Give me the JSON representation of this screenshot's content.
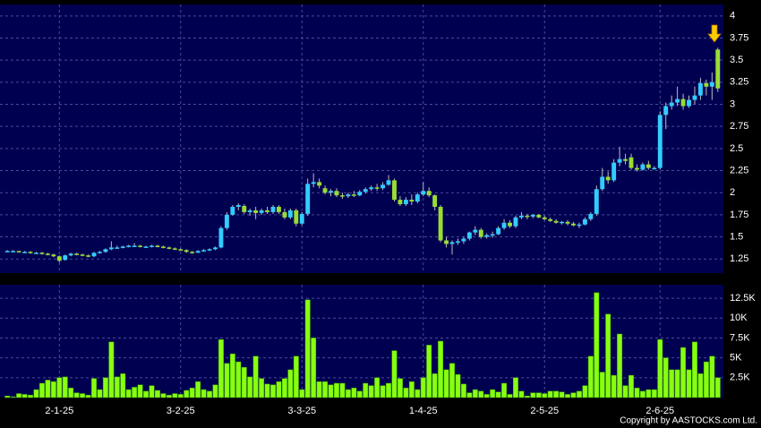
{
  "chart_data": {
    "type": "candlestick",
    "categories": [
      null,
      null,
      null,
      null,
      null,
      null,
      null,
      null,
      null,
      "2-1-25",
      null,
      null,
      null,
      null,
      null,
      null,
      null,
      null,
      null,
      null,
      null,
      null,
      null,
      null,
      null,
      null,
      null,
      null,
      null,
      null,
      "3-2-25",
      null,
      null,
      null,
      null,
      null,
      null,
      null,
      null,
      null,
      null,
      null,
      null,
      null,
      null,
      null,
      null,
      null,
      null,
      null,
      null,
      "3-3-25",
      null,
      null,
      null,
      null,
      null,
      null,
      null,
      null,
      null,
      null,
      null,
      null,
      null,
      null,
      null,
      null,
      null,
      null,
      null,
      null,
      "1-4-25",
      null,
      null,
      null,
      null,
      null,
      null,
      null,
      null,
      null,
      null,
      null,
      null,
      null,
      null,
      null,
      null,
      null,
      null,
      null,
      null,
      "2-5-25",
      null,
      null,
      null,
      null,
      null,
      null,
      null,
      null,
      null,
      null,
      null,
      null,
      null,
      null,
      null,
      null,
      null,
      null,
      null,
      "2-6-25",
      null,
      null,
      null,
      null,
      null,
      null,
      null,
      null,
      null,
      null
    ],
    "ohlc": [
      [
        1.34,
        1.35,
        1.33,
        1.34
      ],
      [
        1.34,
        1.35,
        1.33,
        1.34
      ],
      [
        1.34,
        1.34,
        1.32,
        1.33
      ],
      [
        1.33,
        1.34,
        1.32,
        1.33
      ],
      [
        1.33,
        1.34,
        1.31,
        1.32
      ],
      [
        1.32,
        1.33,
        1.31,
        1.32
      ],
      [
        1.32,
        1.33,
        1.3,
        1.31
      ],
      [
        1.31,
        1.32,
        1.29,
        1.3
      ],
      [
        1.3,
        1.31,
        1.27,
        1.28
      ],
      [
        1.28,
        1.29,
        1.21,
        1.23
      ],
      [
        1.24,
        1.3,
        1.23,
        1.29
      ],
      [
        1.29,
        1.32,
        1.28,
        1.31
      ],
      [
        1.31,
        1.32,
        1.29,
        1.3
      ],
      [
        1.3,
        1.31,
        1.28,
        1.29
      ],
      [
        1.29,
        1.3,
        1.27,
        1.28
      ],
      [
        1.28,
        1.33,
        1.27,
        1.32
      ],
      [
        1.32,
        1.34,
        1.31,
        1.33
      ],
      [
        1.33,
        1.37,
        1.32,
        1.36
      ],
      [
        1.36,
        1.45,
        1.35,
        1.38
      ],
      [
        1.38,
        1.4,
        1.37,
        1.38
      ],
      [
        1.38,
        1.4,
        1.37,
        1.39
      ],
      [
        1.39,
        1.41,
        1.38,
        1.4
      ],
      [
        1.4,
        1.43,
        1.39,
        1.4
      ],
      [
        1.4,
        1.41,
        1.38,
        1.39
      ],
      [
        1.39,
        1.4,
        1.38,
        1.39
      ],
      [
        1.39,
        1.41,
        1.38,
        1.4
      ],
      [
        1.4,
        1.41,
        1.38,
        1.39
      ],
      [
        1.39,
        1.4,
        1.37,
        1.38
      ],
      [
        1.38,
        1.39,
        1.36,
        1.37
      ],
      [
        1.37,
        1.38,
        1.35,
        1.36
      ],
      [
        1.36,
        1.37,
        1.34,
        1.35
      ],
      [
        1.35,
        1.36,
        1.32,
        1.33
      ],
      [
        1.33,
        1.34,
        1.31,
        1.32
      ],
      [
        1.32,
        1.35,
        1.32,
        1.34
      ],
      [
        1.34,
        1.36,
        1.33,
        1.35
      ],
      [
        1.35,
        1.37,
        1.34,
        1.36
      ],
      [
        1.36,
        1.39,
        1.35,
        1.38
      ],
      [
        1.38,
        1.62,
        1.37,
        1.6
      ],
      [
        1.6,
        1.78,
        1.58,
        1.75
      ],
      [
        1.75,
        1.86,
        1.74,
        1.84
      ],
      [
        1.84,
        1.88,
        1.8,
        1.86
      ],
      [
        1.85,
        1.87,
        1.76,
        1.78
      ],
      [
        1.78,
        1.82,
        1.74,
        1.8
      ],
      [
        1.8,
        1.84,
        1.7,
        1.77
      ],
      [
        1.77,
        1.82,
        1.75,
        1.8
      ],
      [
        1.8,
        1.84,
        1.76,
        1.78
      ],
      [
        1.78,
        1.86,
        1.76,
        1.84
      ],
      [
        1.84,
        1.86,
        1.76,
        1.78
      ],
      [
        1.78,
        1.82,
        1.7,
        1.72
      ],
      [
        1.72,
        1.82,
        1.7,
        1.8
      ],
      [
        1.8,
        1.82,
        1.62,
        1.65
      ],
      [
        1.65,
        1.78,
        1.63,
        1.76
      ],
      [
        1.76,
        2.16,
        1.74,
        2.1
      ],
      [
        2.1,
        2.22,
        2.06,
        2.12
      ],
      [
        2.12,
        2.16,
        2.05,
        2.08
      ],
      [
        2.05,
        2.08,
        1.98,
        2.0
      ],
      [
        2.0,
        2.04,
        1.96,
        2.02
      ],
      [
        2.02,
        2.05,
        1.95,
        1.97
      ],
      [
        1.97,
        2.0,
        1.93,
        1.96
      ],
      [
        1.96,
        2.0,
        1.94,
        1.98
      ],
      [
        1.98,
        2.02,
        1.95,
        1.97
      ],
      [
        1.97,
        2.03,
        1.96,
        2.01
      ],
      [
        2.01,
        2.06,
        1.99,
        2.04
      ],
      [
        2.04,
        2.08,
        2.02,
        2.06
      ],
      [
        2.06,
        2.1,
        2.02,
        2.05
      ],
      [
        2.05,
        2.12,
        2.03,
        2.09
      ],
      [
        2.09,
        2.2,
        2.08,
        2.14
      ],
      [
        2.14,
        2.16,
        1.9,
        1.92
      ],
      [
        1.92,
        1.96,
        1.85,
        1.87
      ],
      [
        1.87,
        1.95,
        1.85,
        1.92
      ],
      [
        1.92,
        1.98,
        1.86,
        1.9
      ],
      [
        1.9,
        2.0,
        1.88,
        1.98
      ],
      [
        1.98,
        2.12,
        1.96,
        2.02
      ],
      [
        2.02,
        2.06,
        1.95,
        1.97
      ],
      [
        1.97,
        1.98,
        1.8,
        1.84
      ],
      [
        1.84,
        1.86,
        1.44,
        1.46
      ],
      [
        1.46,
        1.5,
        1.38,
        1.42
      ],
      [
        1.42,
        1.46,
        1.3,
        1.44
      ],
      [
        1.44,
        1.48,
        1.41,
        1.45
      ],
      [
        1.45,
        1.5,
        1.42,
        1.48
      ],
      [
        1.48,
        1.56,
        1.46,
        1.55
      ],
      [
        1.55,
        1.62,
        1.52,
        1.58
      ],
      [
        1.58,
        1.6,
        1.48,
        1.5
      ],
      [
        1.5,
        1.54,
        1.48,
        1.52
      ],
      [
        1.52,
        1.56,
        1.49,
        1.53
      ],
      [
        1.53,
        1.62,
        1.52,
        1.6
      ],
      [
        1.6,
        1.7,
        1.58,
        1.66
      ],
      [
        1.66,
        1.69,
        1.6,
        1.62
      ],
      [
        1.62,
        1.74,
        1.6,
        1.72
      ],
      [
        1.72,
        1.78,
        1.7,
        1.74
      ],
      [
        1.74,
        1.76,
        1.7,
        1.73
      ],
      [
        1.73,
        1.76,
        1.71,
        1.75
      ],
      [
        1.75,
        1.76,
        1.71,
        1.72
      ],
      [
        1.72,
        1.74,
        1.69,
        1.7
      ],
      [
        1.7,
        1.72,
        1.67,
        1.68
      ],
      [
        1.68,
        1.7,
        1.65,
        1.66
      ],
      [
        1.66,
        1.68,
        1.64,
        1.67
      ],
      [
        1.67,
        1.69,
        1.63,
        1.65
      ],
      [
        1.65,
        1.67,
        1.62,
        1.63
      ],
      [
        1.63,
        1.66,
        1.6,
        1.64
      ],
      [
        1.64,
        1.72,
        1.63,
        1.7
      ],
      [
        1.7,
        1.78,
        1.68,
        1.76
      ],
      [
        1.76,
        2.08,
        1.74,
        2.04
      ],
      [
        2.04,
        2.28,
        2.02,
        2.18
      ],
      [
        2.18,
        2.24,
        2.1,
        2.14
      ],
      [
        2.14,
        2.38,
        2.12,
        2.34
      ],
      [
        2.34,
        2.52,
        2.3,
        2.38
      ],
      [
        2.38,
        2.44,
        2.32,
        2.36
      ],
      [
        2.4,
        2.44,
        2.26,
        2.28
      ],
      [
        2.28,
        2.32,
        2.24,
        2.26
      ],
      [
        2.26,
        2.34,
        2.25,
        2.32
      ],
      [
        2.32,
        2.36,
        2.26,
        2.28
      ],
      [
        2.28,
        2.3,
        2.26,
        2.28
      ],
      [
        2.28,
        2.92,
        2.26,
        2.88
      ],
      [
        2.88,
        3.02,
        2.72,
        2.98
      ],
      [
        2.98,
        3.1,
        2.94,
        3.02
      ],
      [
        3.02,
        3.2,
        2.98,
        3.06
      ],
      [
        3.06,
        3.12,
        2.94,
        2.98
      ],
      [
        2.98,
        3.1,
        2.96,
        3.05
      ],
      [
        3.05,
        3.2,
        3.0,
        3.1
      ],
      [
        3.1,
        3.3,
        3.05,
        3.24
      ],
      [
        3.24,
        3.28,
        3.1,
        3.2
      ],
      [
        3.2,
        3.36,
        3.05,
        3.25
      ],
      [
        3.62,
        3.64,
        3.14,
        3.18
      ]
    ],
    "volume": [
      200,
      100,
      500,
      400,
      300,
      1000,
      1800,
      2200,
      2000,
      2500,
      2600,
      1200,
      600,
      500,
      300,
      2400,
      1000,
      2500,
      7000,
      2600,
      3000,
      1000,
      1300,
      1600,
      800,
      1500,
      900,
      500,
      300,
      500,
      400,
      900,
      1200,
      2000,
      1000,
      800,
      1600,
      7300,
      4300,
      5500,
      4500,
      3800,
      2600,
      5200,
      2400,
      1700,
      1600,
      2000,
      2400,
      3500,
      5200,
      1000,
      12300,
      7500,
      2000,
      2000,
      1600,
      1800,
      1800,
      1000,
      1200,
      800,
      1800,
      1500,
      2500,
      1500,
      1800,
      5900,
      2400,
      1200,
      2000,
      1000,
      2500,
      6600,
      3000,
      7100,
      3500,
      4300,
      2900,
      1700,
      600,
      1000,
      800,
      400,
      1000,
      700,
      1800,
      400,
      2500,
      800,
      200,
      600,
      600,
      500,
      800,
      800,
      700,
      400,
      600,
      800,
      1500,
      5200,
      13200,
      3200,
      10500,
      2800,
      8000,
      1500,
      2800,
      1200,
      800,
      1000,
      1000,
      7300,
      5000,
      3500,
      3500,
      6300,
      3500,
      7000,
      3000,
      4500,
      5200,
      2500
    ],
    "ylim": [
      1.09,
      4.13
    ],
    "yticks": [
      1.25,
      1.5,
      1.75,
      2,
      2.25,
      2.5,
      2.75,
      3,
      3.25,
      3.5,
      3.75,
      4
    ],
    "volume_ylim": [
      0,
      14200
    ],
    "volume_yticks": [
      {
        "value": 2500,
        "label": "2.5K"
      },
      {
        "value": 5000,
        "label": "5K"
      },
      {
        "value": 7500,
        "label": "7.5K"
      },
      {
        "value": 10000,
        "label": "10K"
      },
      {
        "value": 12500,
        "label": "12.5K"
      }
    ],
    "up_color": "#33ccff",
    "down_color": "#99dd33",
    "volume_color": "#88ff11",
    "grid": true
  },
  "footer": "Copyright by AASTOCKS.com Ltd."
}
